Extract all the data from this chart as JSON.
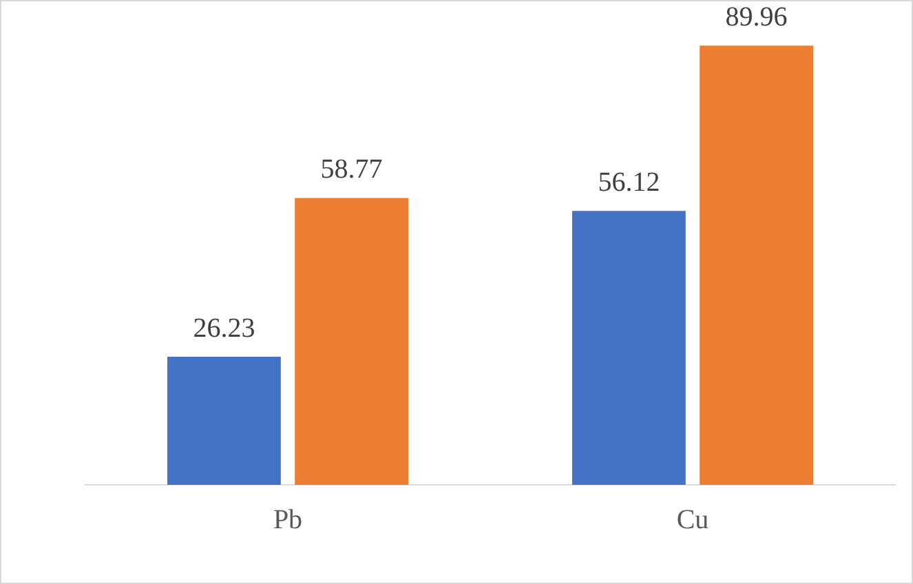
{
  "chart_data": {
    "type": "bar",
    "categories": [
      "Pb",
      "Cu"
    ],
    "series": [
      {
        "color": "#4472c4",
        "values": [
          26.23,
          56.12
        ]
      },
      {
        "color": "#ed7d31",
        "values": [
          58.77,
          89.96
        ]
      }
    ],
    "data_labels": true,
    "grid": false,
    "legend": false,
    "tick_labels": "x"
  }
}
